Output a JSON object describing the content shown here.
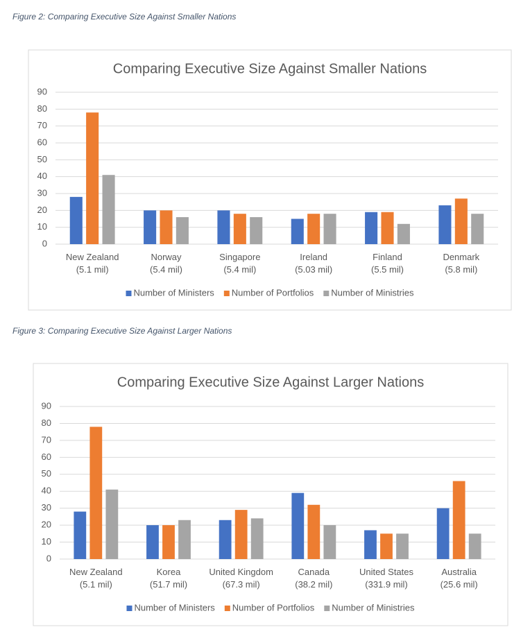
{
  "chart_data": [
    {
      "type": "bar",
      "caption": "Figure 2: Comparing Executive Size Against Smaller Nations",
      "title": "Comparing Executive Size Against Smaller Nations",
      "categories": [
        "New Zealand\n(5.1 mil)",
        "Norway\n(5.4 mil)",
        "Singapore\n(5.4 mil)",
        "Ireland\n(5.03 mil)",
        "Finland\n(5.5 mil)",
        "Denmark\n(5.8 mil)"
      ],
      "series": [
        {
          "name": "Number of Ministers",
          "color": "#4472c4",
          "values": [
            28,
            20,
            20,
            15,
            19,
            23
          ]
        },
        {
          "name": "Number of Portfolios",
          "color": "#ed7d31",
          "values": [
            78,
            20,
            18,
            18,
            19,
            27
          ]
        },
        {
          "name": "Number of Ministries",
          "color": "#a5a5a5",
          "values": [
            41,
            16,
            16,
            18,
            12,
            18
          ]
        }
      ],
      "ylim": [
        0,
        90
      ],
      "yticks": [
        0,
        10,
        20,
        30,
        40,
        50,
        60,
        70,
        80,
        90
      ],
      "grid": true,
      "legend": "bottom"
    },
    {
      "type": "bar",
      "caption": "Figure 3: Comparing Executive Size Against Larger Nations",
      "title": "Comparing Executive Size Against Larger Nations",
      "categories": [
        "New Zealand\n(5.1 mil)",
        "Korea\n(51.7 mil)",
        "United Kingdom\n(67.3 mil)",
        "Canada\n(38.2 mil)",
        "United States\n(331.9 mil)",
        "Australia\n(25.6 mil)"
      ],
      "series": [
        {
          "name": "Number of Ministers",
          "color": "#4472c4",
          "values": [
            28,
            20,
            23,
            39,
            17,
            30
          ]
        },
        {
          "name": "Number of Portfolios",
          "color": "#ed7d31",
          "values": [
            78,
            20,
            29,
            32,
            15,
            46
          ]
        },
        {
          "name": "Number of Ministries",
          "color": "#a5a5a5",
          "values": [
            41,
            23,
            24,
            20,
            15,
            15
          ]
        }
      ],
      "ylim": [
        0,
        90
      ],
      "yticks": [
        0,
        10,
        20,
        30,
        40,
        50,
        60,
        70,
        80,
        90
      ],
      "grid": true,
      "legend": "bottom"
    }
  ]
}
